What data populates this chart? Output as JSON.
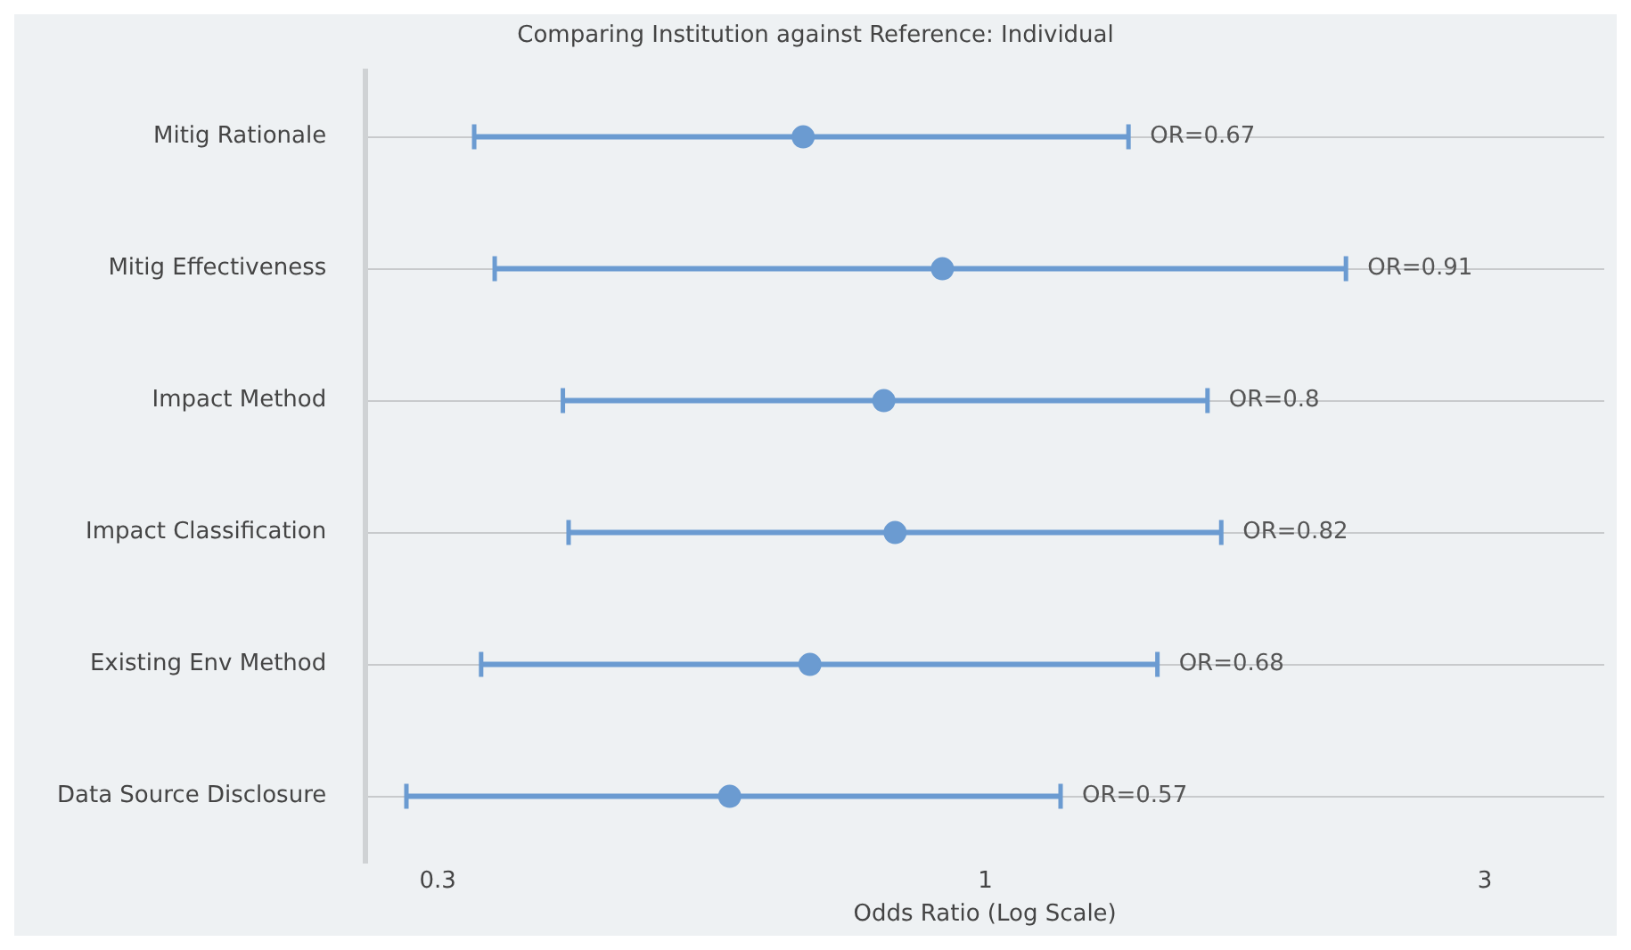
{
  "chart_data": {
    "type": "scatter",
    "orientation": "horizontal",
    "title": "Comparing Institution against Reference: Individual",
    "xlabel": "Odds Ratio (Log Scale)",
    "categories": [
      "Mitig Rationale",
      "Mitig Effectiveness",
      "Impact Method",
      "Impact Classification",
      "Existing Env Method",
      "Data Source Disclosure"
    ],
    "values": [
      0.67,
      0.91,
      0.8,
      0.82,
      0.68,
      0.57
    ],
    "errors": [
      [
        0.325,
        1.37
      ],
      [
        0.34,
        2.21
      ],
      [
        0.395,
        1.63
      ],
      [
        0.4,
        1.68
      ],
      [
        0.33,
        1.46
      ],
      [
        0.28,
        1.18
      ]
    ],
    "annotations": [
      {
        "text": "OR=0.67",
        "x": 1.37,
        "y": "Mitig Rationale"
      },
      {
        "text": "OR=0.91",
        "x": 2.21,
        "y": "Mitig Effectiveness"
      },
      {
        "text": "OR=0.8",
        "x": 1.63,
        "y": "Impact Method"
      },
      {
        "text": "OR=0.82",
        "x": 1.68,
        "y": "Impact Classification"
      },
      {
        "text": "OR=0.68",
        "x": 1.46,
        "y": "Existing Env Method"
      },
      {
        "text": "OR=0.57",
        "x": 1.18,
        "y": "Data Source Disclosure"
      }
    ],
    "color": "#6b9bd1",
    "log": "x",
    "xlim": [
      0.256,
      3.9
    ],
    "xticks": [
      0.3,
      1,
      3
    ],
    "grid": "y",
    "marker": "circle",
    "legend": false
  }
}
